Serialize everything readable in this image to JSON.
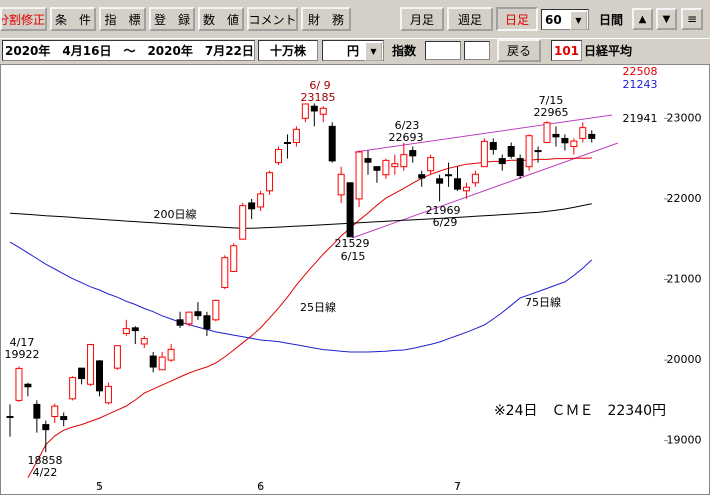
{
  "toolbar": {
    "buttons": [
      "分割修正",
      "条　件",
      "指　標",
      "登　録",
      "数　値",
      "コメント",
      "財　務"
    ],
    "periods": [
      "月足",
      "週足",
      "日足"
    ],
    "span": "60",
    "span_unit": "日間",
    "arrows": [
      "▲",
      "▼",
      "≡"
    ]
  },
  "range_bar": {
    "range": "2020年　4月16日　～　2020年　7月22日",
    "unit": "十万株",
    "currency": "円",
    "index_label": "指数",
    "back": "戻る",
    "code": "101",
    "name": "日経平均"
  },
  "chart_data": {
    "type": "candlestick",
    "categories": [
      null,
      null,
      null,
      null,
      null,
      null,
      null,
      null,
      null,
      null,
      "5",
      null,
      null,
      null,
      null,
      null,
      null,
      null,
      null,
      null,
      null,
      null,
      null,
      null,
      null,
      null,
      null,
      null,
      "6",
      null,
      null,
      null,
      null,
      null,
      null,
      null,
      null,
      null,
      null,
      null,
      null,
      null,
      null,
      null,
      null,
      null,
      null,
      null,
      null,
      null,
      "7",
      null,
      null,
      null,
      null,
      null,
      null,
      null,
      null,
      null,
      null,
      null,
      null,
      null,
      null,
      null
    ],
    "open": [
      19300,
      19500,
      19700,
      19450,
      19200,
      19300,
      19300,
      19520,
      19900,
      19700,
      19990,
      19470,
      19900,
      20330,
      20400,
      20200,
      20050,
      19880,
      20000,
      20500,
      20450,
      20600,
      20550,
      20500,
      20900,
      21100,
      21500,
      21950,
      21900,
      22100,
      22450,
      22700,
      22700,
      23000,
      23150,
      23050,
      22900,
      22050,
      22200,
      22000,
      22500,
      22400,
      22300,
      22400,
      22400,
      22600,
      22300,
      22350,
      22250,
      22300,
      22250,
      22100,
      22200,
      22400,
      22700,
      22500,
      22650,
      22500,
      22400,
      22600,
      22700,
      22800,
      22750,
      22650,
      22750,
      22800
    ],
    "high": [
      19450,
      19922,
      19720,
      19500,
      19250,
      19460,
      19350,
      19800,
      19900,
      20200,
      20000,
      19720,
      20180,
      20500,
      20420,
      20300,
      20100,
      20100,
      20200,
      20600,
      20600,
      20720,
      20600,
      20750,
      21300,
      21450,
      21950,
      22000,
      22100,
      22350,
      22650,
      22800,
      22900,
      23180,
      23185,
      23150,
      22950,
      22400,
      22200,
      22600,
      22600,
      22400,
      22500,
      22550,
      22693,
      22650,
      22350,
      22550,
      22300,
      22450,
      22400,
      22200,
      22350,
      22750,
      22750,
      22550,
      22700,
      22550,
      22800,
      22650,
      22965,
      22900,
      22800,
      22750,
      22950,
      22850
    ],
    "low": [
      19050,
      19480,
      19550,
      19100,
      18858,
      19220,
      19180,
      19500,
      19700,
      19680,
      19550,
      19450,
      19880,
      20300,
      20200,
      20150,
      19850,
      19880,
      19980,
      20400,
      20420,
      20500,
      20300,
      20480,
      20880,
      21100,
      21500,
      21750,
      21850,
      22050,
      22420,
      22500,
      22650,
      22950,
      22900,
      22950,
      22450,
      21950,
      21529,
      21900,
      22300,
      22200,
      22250,
      22300,
      22350,
      22450,
      22150,
      22300,
      21969,
      22150,
      22100,
      22000,
      22150,
      22400,
      22550,
      22350,
      22500,
      22250,
      22350,
      22450,
      22700,
      22650,
      22600,
      22550,
      22700,
      22700
    ],
    "close": [
      19290,
      19897,
      19669,
      19280,
      19137,
      19429,
      19262,
      19783,
      19771,
      20193,
      19619,
      19674,
      20179,
      20390,
      20366,
      20267,
      19914,
      20037,
      20133,
      20433,
      20595,
      20552,
      20388,
      20741,
      21271,
      21419,
      21916,
      21877,
      22062,
      22325,
      22613,
      22695,
      22863,
      23178,
      23091,
      23124,
      22472,
      22305,
      21530,
      22582,
      22455,
      22355,
      22478,
      22437,
      22549,
      22534,
      22259,
      22512,
      22195,
      22288,
      22121,
      22145,
      22306,
      22714,
      22614,
      22438,
      22529,
      22290,
      22784,
      22587,
      22945,
      22770,
      22696,
      22717,
      22884,
      22751
    ],
    "up_color": "#ff0000",
    "down_color": "#000000",
    "series": [
      {
        "name": "25日線",
        "color": "#e00000",
        "values": [
          null,
          null,
          18540,
          18740,
          18950,
          19060,
          19130,
          19170,
          19200,
          19240,
          19280,
          19330,
          19380,
          19430,
          19505,
          19590,
          19640,
          19690,
          19740,
          19790,
          19840,
          19880,
          19915,
          19965,
          20040,
          20125,
          20215,
          20300,
          20400,
          20520,
          20645,
          20780,
          20930,
          21065,
          21190,
          21315,
          21425,
          21540,
          21635,
          21735,
          21825,
          21920,
          22010,
          22070,
          22130,
          22195,
          22255,
          22305,
          22345,
          22380,
          22405,
          22430,
          22440,
          22455,
          22465,
          22465,
          22480,
          22480,
          22480,
          22490,
          22490,
          22500,
          22500,
          22505,
          22505,
          22508
        ]
      },
      {
        "name": "75日線",
        "color": "#2020d0",
        "values": [
          21464,
          21400,
          21330,
          21260,
          21190,
          21130,
          21070,
          21010,
          20960,
          20910,
          20870,
          20820,
          20780,
          20730,
          20690,
          20640,
          20600,
          20550,
          20510,
          20470,
          20440,
          20410,
          20380,
          20350,
          20330,
          20310,
          20290,
          20270,
          20250,
          20240,
          20230,
          20210,
          20190,
          20170,
          20150,
          20130,
          20120,
          20110,
          20100,
          20100,
          20100,
          20105,
          20110,
          20120,
          20125,
          20145,
          20170,
          20195,
          20225,
          20265,
          20305,
          20345,
          20390,
          20435,
          20510,
          20590,
          20680,
          20770,
          20810,
          20850,
          20890,
          20930,
          20970,
          21050,
          21140,
          21243
        ]
      },
      {
        "name": "200日線",
        "color": "#000000",
        "values": [
          21823,
          21815,
          21808,
          21800,
          21792,
          21785,
          21778,
          21770,
          21762,
          21755,
          21748,
          21740,
          21733,
          21725,
          21718,
          21710,
          21703,
          21696,
          21689,
          21682,
          21675,
          21668,
          21661,
          21654,
          21647,
          21640,
          21635,
          21635,
          21640,
          21645,
          21650,
          21656,
          21662,
          21668,
          21674,
          21680,
          21686,
          21692,
          21698,
          21704,
          21710,
          21716,
          21722,
          21728,
          21734,
          21740,
          21746,
          21752,
          21758,
          21764,
          21770,
          21777,
          21784,
          21791,
          21798,
          21805,
          21812,
          21819,
          21826,
          21833,
          21845,
          21860,
          21875,
          21895,
          21918,
          21941
        ]
      }
    ],
    "annotations": [
      "4/17",
      "4/22",
      "6/ 9",
      "6/23",
      "6/29",
      "6/15",
      "7/15"
    ],
    "note": "※24日　ＣＭＥ　22340円",
    "ylim": [
      18500,
      23500
    ],
    "yticks": [
      19000,
      20000,
      21000,
      22000,
      23000
    ]
  }
}
